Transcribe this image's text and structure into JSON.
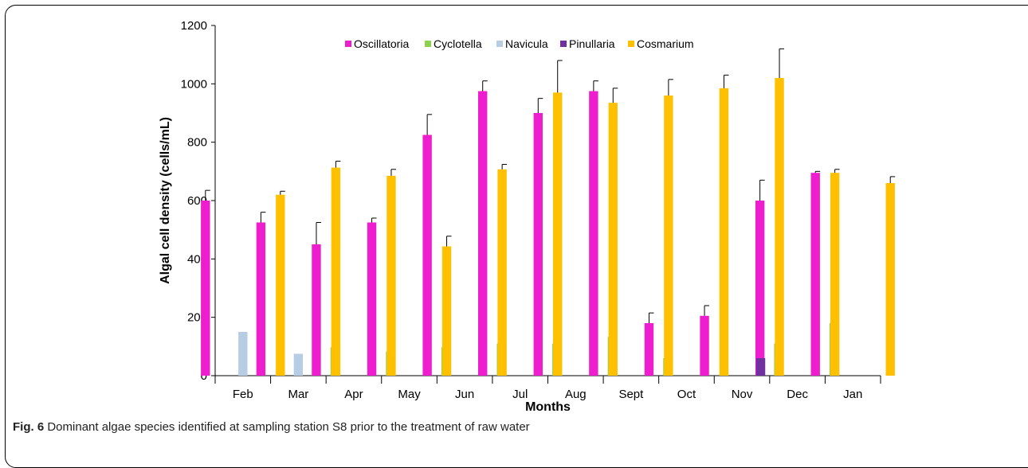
{
  "chart_data": {
    "type": "bar",
    "categories": [
      "Feb",
      "Mar",
      "Apr",
      "May",
      "Jun",
      "Jul",
      "Aug",
      "Sept",
      "Oct",
      "Nov",
      "Dec",
      "Jan"
    ],
    "series": [
      {
        "name": "Oscillatoria",
        "color": "#ee1ecf",
        "values": [
          600,
          525,
          450,
          525,
          825,
          975,
          900,
          975,
          180,
          205,
          600,
          695
        ],
        "errors": [
          35,
          35,
          75,
          15,
          70,
          35,
          50,
          35,
          35,
          35,
          70,
          5
        ]
      },
      {
        "name": "Cyclotella",
        "color": "#8fd14f",
        "values": [
          0,
          0,
          97,
          83,
          97,
          110,
          110,
          133,
          60,
          0,
          110,
          180
        ],
        "errors": [
          0,
          0,
          15,
          18,
          15,
          15,
          3,
          25,
          22,
          0,
          22,
          30
        ]
      },
      {
        "name": "Navicula",
        "color": "#b7cde3",
        "values": [
          150,
          75,
          0,
          0,
          0,
          0,
          0,
          0,
          0,
          0,
          0,
          0
        ],
        "errors": [
          0,
          0,
          0,
          0,
          0,
          0,
          0,
          0,
          0,
          0,
          0,
          0
        ]
      },
      {
        "name": "Pinullaria",
        "color": "#7030a0",
        "values": [
          0,
          0,
          0,
          0,
          0,
          0,
          0,
          0,
          0,
          60,
          0,
          0
        ],
        "errors": [
          0,
          0,
          0,
          0,
          0,
          0,
          0,
          0,
          0,
          0,
          0,
          0
        ]
      },
      {
        "name": "Cosmarium",
        "color": "#ffc000",
        "values": [
          620,
          713,
          685,
          443,
          707,
          970,
          935,
          960,
          985,
          1020,
          695,
          660
        ],
        "errors": [
          12,
          22,
          22,
          35,
          17,
          110,
          50,
          55,
          45,
          100,
          12,
          22
        ]
      }
    ],
    "xlabel": "Months",
    "ylabel": "Algal cell density (cells/mL)",
    "ylim": [
      0,
      1200
    ],
    "yticks": [
      0,
      200,
      400,
      600,
      800,
      1000,
      1200
    ],
    "legend": "top-center",
    "grid": false
  },
  "caption": {
    "label": "Fig. 6",
    "text": "Dominant algae species identified at sampling station S8 prior to the treatment of raw water"
  }
}
